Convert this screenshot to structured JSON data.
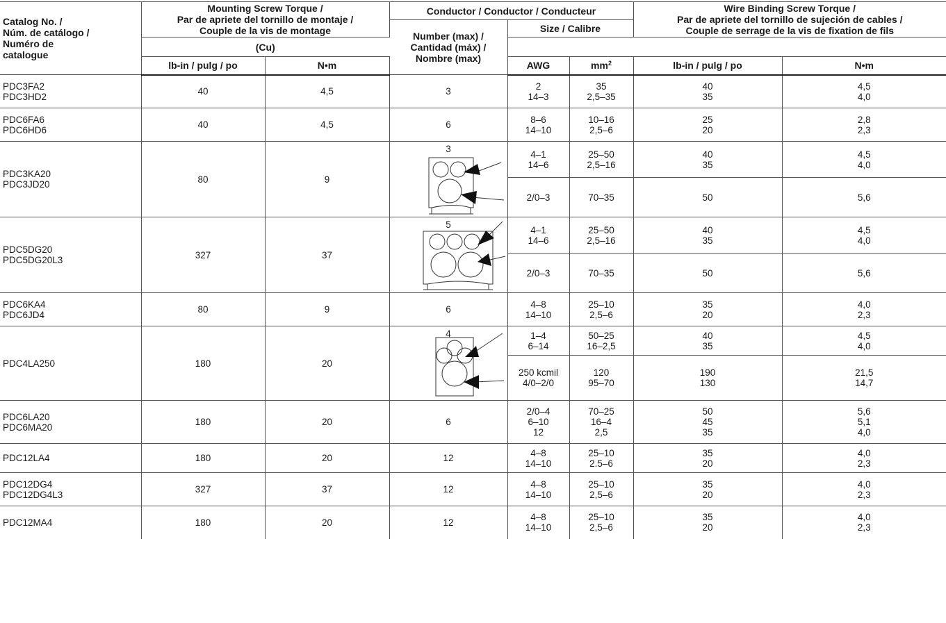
{
  "headers": {
    "catalog": "Catalog No. /\nNúm. de catálogo /\nNuméro de\ncatalogue",
    "mounting": "Mounting Screw Torque /\nPar de apriete del tornillo de montaje /\nCouple de la vis de montage",
    "conductor": "Conductor / Conductor / Conducteur",
    "number": "Number (max) /\nCantidad (máx) /\nNombre (max)",
    "size": "Size / Calibre",
    "cu": "(Cu)",
    "wire": "Wire Binding Screw Torque /\nPar de apriete del tornillo de sujeción de cables /\nCouple de serrage de la vis de fixation de fils",
    "lbin": "lb-in / pulg / po",
    "nm": "N•m",
    "awg": "AWG",
    "mm": "mm",
    "mm_sup": "2",
    "lbin2": "lb-in / pulg / po",
    "nm2": "N•m"
  },
  "rows": [
    {
      "cat": "PDC3FA2\nPDC3HD2",
      "mt_lb": "40",
      "mt_nm": "4,5",
      "num": "3",
      "sub": [
        {
          "awg": "2\n14–3",
          "mm": "35\n2,5–35",
          "lb": "40\n35",
          "nm": "4,5\n4,0"
        }
      ]
    },
    {
      "cat": "PDC6FA6\nPDC6HD6",
      "mt_lb": "40",
      "mt_nm": "4,5",
      "num": "6",
      "sub": [
        {
          "awg": "8–6\n14–10",
          "mm": "10–16\n2,5–6",
          "lb": "25\n20",
          "nm": "2,8\n2,3"
        }
      ]
    },
    {
      "cat": "PDC3KA20\nPDC3JD20",
      "mt_lb": "80",
      "mt_nm": "9",
      "num": "3",
      "diagram": "two-small-one-large",
      "sub": [
        {
          "awg": "4–1\n14–6",
          "mm": "25–50\n2,5–16",
          "lb": "40\n35",
          "nm": "4,5\n4,0"
        },
        {
          "awg": "2/0–3",
          "mm": "70–35",
          "lb": "50",
          "nm": "5,6"
        }
      ]
    },
    {
      "cat": "PDC5DG20\nPDC5DG20L3",
      "mt_lb": "327",
      "mt_nm": "37",
      "num": "5",
      "diagram": "three-small-two-large",
      "sub": [
        {
          "awg": "4–1\n14–6",
          "mm": "25–50\n2,5–16",
          "lb": "40\n35",
          "nm": "4,5\n4,0"
        },
        {
          "awg": "2/0–3",
          "mm": "70–35",
          "lb": "50",
          "nm": "5,6"
        }
      ]
    },
    {
      "cat": "PDC6KA4\nPDC6JD4",
      "mt_lb": "80",
      "mt_nm": "9",
      "num": "6",
      "sub": [
        {
          "awg": "4–8\n14–10",
          "mm": "25–10\n2,5–6",
          "lb": "35\n20",
          "nm": "4,0\n2,3"
        }
      ]
    },
    {
      "cat": "PDC4LA250",
      "mt_lb": "180",
      "mt_nm": "20",
      "num": "4",
      "diagram": "three-small-one-large",
      "sub": [
        {
          "awg": "1–4\n6–14",
          "mm": "50–25\n16–2,5",
          "lb": "40\n35",
          "nm": "4,5\n4,0"
        },
        {
          "awg": "250 kcmil\n4/0–2/0",
          "mm": "120\n95–70",
          "lb": "190\n130",
          "nm": "21,5\n14,7"
        }
      ]
    },
    {
      "cat": "PDC6LA20\nPDC6MA20",
      "mt_lb": "180",
      "mt_nm": "20",
      "num": "6",
      "sub": [
        {
          "awg": "2/0–4\n6–10\n12",
          "mm": "70–25\n16–4\n2,5",
          "lb": "50\n45\n35",
          "nm": "5,6\n5,1\n4,0"
        }
      ]
    },
    {
      "cat": "PDC12LA4",
      "mt_lb": "180",
      "mt_nm": "20",
      "num": "12",
      "sub": [
        {
          "awg": "4–8\n14–10",
          "mm": "25–10\n2.5–6",
          "lb": "35\n20",
          "nm": "4,0\n2,3"
        }
      ]
    },
    {
      "cat": "PDC12DG4\nPDC12DG4L3",
      "mt_lb": "327",
      "mt_nm": "37",
      "num": "12",
      "sub": [
        {
          "awg": "4–8\n14–10",
          "mm": "25–10\n2,5–6",
          "lb": "35\n20",
          "nm": "4,0\n2,3"
        }
      ]
    },
    {
      "cat": "PDC12MA4",
      "mt_lb": "180",
      "mt_nm": "20",
      "num": "12",
      "sub": [
        {
          "awg": "4–8\n14–10",
          "mm": "25–10\n2,5–6",
          "lb": "35\n20",
          "nm": "4,0\n2,3"
        }
      ]
    }
  ]
}
